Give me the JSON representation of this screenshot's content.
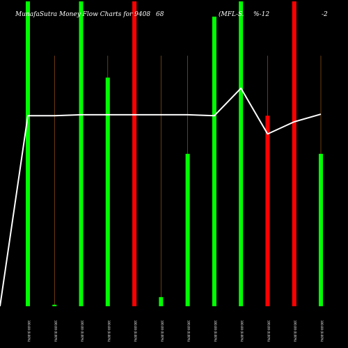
{
  "header": {
    "title_parts": [
      "MunafaSutra  Money Flow  Charts for 9408",
      "68",
      "(MFL-S.",
      "%-12",
      "-2"
    ]
  },
  "chart_data": {
    "type": "bar",
    "title": "MunafaSutra Money Flow Charts for 940868 (MFL-S%-12-2",
    "categories": [
      "Fri 09 May 2025",
      "Thu 08 May 2025",
      "Wed 07 May 2025",
      "Tue 06 May 2025",
      "Mon 05 May 2025",
      "Fri 02 May 2025",
      "Wed 30 Apr 2025",
      "Tue 29 Apr 2025",
      "Mon 28 Apr 2025",
      "Fri 25 Apr 2025",
      "Thu 24 Apr 2025",
      "Wed 23 Apr 2025"
    ],
    "tick_labels": [
      "100.00 (0.00%)",
      "100.00 (0.00%)",
      "100.00 (0.00%)",
      "100.00 (0.00%)",
      "100.00 (0.00%)",
      "100.00 (0.00%)",
      "100.00 (0.00%)",
      "100.00 (0.00%)",
      "100.00 (0.00%)",
      "100.00 (0.00%)",
      "100.00 (0.00%)",
      "100.00 (0.00%)"
    ],
    "bar_values": [
      100,
      0.5,
      100,
      75,
      100,
      3,
      50,
      95,
      100,
      62.5,
      100,
      50
    ],
    "bar_colors": [
      "#00ff00",
      "#00ff00",
      "#00ff00",
      "#00ff00",
      "#ff0000",
      "#00ff00",
      "#00ff00",
      "#00ff00",
      "#00ff00",
      "#ff0000",
      "#ff0000",
      "#00ff00"
    ],
    "line_values": [
      62.5,
      62.5,
      62.8,
      62.8,
      62.8,
      62.8,
      62.8,
      62.5,
      71.5,
      56.5,
      60.5,
      63
    ],
    "ylim": [
      0,
      100
    ],
    "grid": false,
    "colors": {
      "background": "#000000",
      "up": "#00ff00",
      "down": "#ff0000",
      "guide": "#b5651d",
      "line": "#ffffff",
      "text": "#ffffff"
    }
  }
}
